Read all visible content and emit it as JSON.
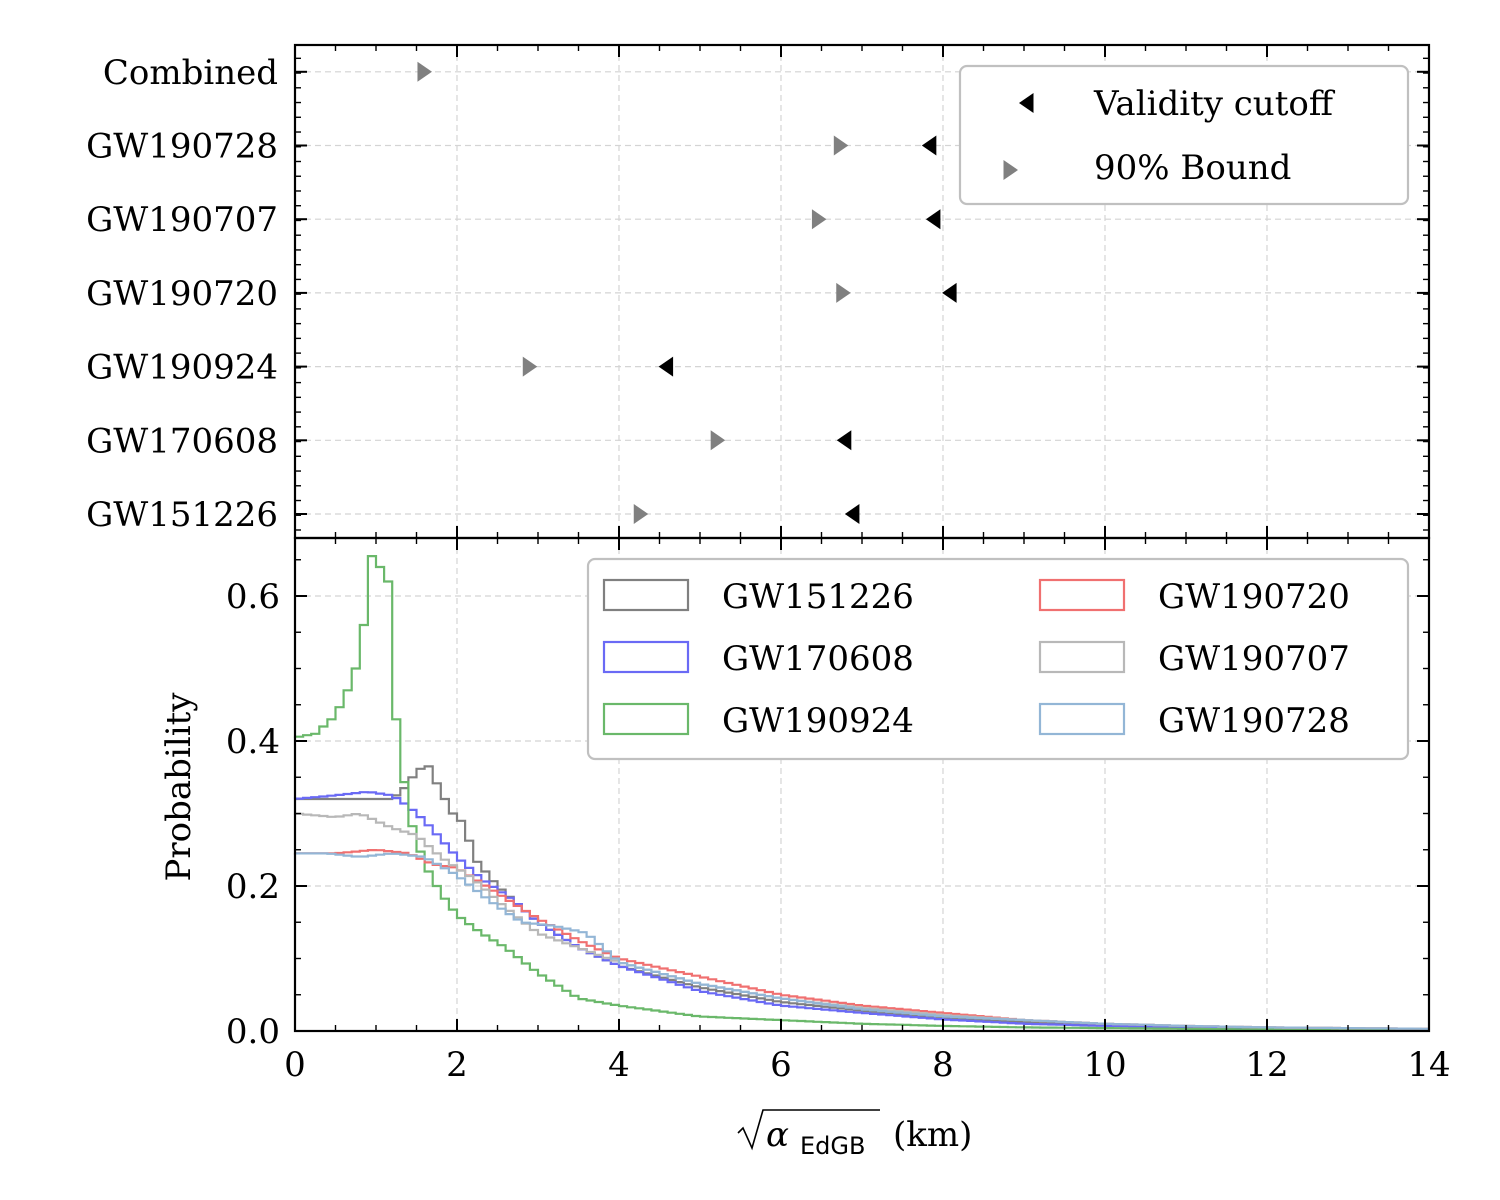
{
  "chart_data": [
    {
      "type": "scatter",
      "panel": "top",
      "categories": [
        "GW151226",
        "GW170608",
        "GW190924",
        "GW190720",
        "GW190707",
        "GW190728",
        "Combined"
      ],
      "series": [
        {
          "name": "Validity cutoff",
          "marker": "triangle-left",
          "color": "#000000",
          "x": [
            6.9,
            6.8,
            4.6,
            8.1,
            7.9,
            7.85,
            null
          ]
        },
        {
          "name": "90% Bound",
          "marker": "triangle-right",
          "color": "#808080",
          "x": [
            4.25,
            5.2,
            2.88,
            6.75,
            6.45,
            6.72,
            1.58
          ]
        }
      ],
      "xlim": [
        0,
        14
      ],
      "legend": "top-right"
    },
    {
      "type": "histogram",
      "panel": "bottom",
      "xlabel_main": "α",
      "xlabel_sub": "EdGB",
      "xlabel_unit": "(km)",
      "ylabel": "Probability",
      "xlim": [
        0,
        14
      ],
      "ylim": [
        0,
        0.68
      ],
      "xticks": [
        "0",
        "2",
        "4",
        "6",
        "8",
        "10",
        "12",
        "14"
      ],
      "yticks": [
        "0.0",
        "0.2",
        "0.4",
        "0.6"
      ],
      "legend": "top-right",
      "series": [
        {
          "name": "GW151226",
          "color": "#808080",
          "points": [
            [
              0,
              0.32
            ],
            [
              0.8,
              0.32
            ],
            [
              1.2,
              0.32
            ],
            [
              1.4,
              0.34
            ],
            [
              1.5,
              0.36
            ],
            [
              1.65,
              0.365
            ],
            [
              1.8,
              0.33
            ],
            [
              1.95,
              0.3
            ],
            [
              2.1,
              0.285
            ],
            [
              2.2,
              0.24
            ],
            [
              2.5,
              0.2
            ],
            [
              3,
              0.15
            ],
            [
              3.5,
              0.115
            ],
            [
              4,
              0.09
            ],
            [
              5,
              0.06
            ],
            [
              6,
              0.04
            ],
            [
              7,
              0.028
            ],
            [
              8,
              0.018
            ],
            [
              9,
              0.012
            ],
            [
              10,
              0.008
            ],
            [
              11,
              0.006
            ],
            [
              12,
              0.004
            ],
            [
              13,
              0.003
            ],
            [
              14,
              0.002
            ]
          ]
        },
        {
          "name": "GW170608",
          "color": "#6a6af5",
          "points": [
            [
              0,
              0.32
            ],
            [
              0.5,
              0.325
            ],
            [
              0.9,
              0.33
            ],
            [
              1.2,
              0.325
            ],
            [
              1.4,
              0.31
            ],
            [
              1.6,
              0.29
            ],
            [
              1.8,
              0.265
            ],
            [
              2,
              0.24
            ],
            [
              2.3,
              0.21
            ],
            [
              2.7,
              0.18
            ],
            [
              3,
              0.15
            ],
            [
              3.5,
              0.115
            ],
            [
              4,
              0.09
            ],
            [
              5,
              0.055
            ],
            [
              6,
              0.035
            ],
            [
              7,
              0.025
            ],
            [
              8,
              0.016
            ],
            [
              9,
              0.01
            ],
            [
              10,
              0.007
            ],
            [
              11,
              0.005
            ],
            [
              12,
              0.004
            ],
            [
              13,
              0.003
            ],
            [
              14,
              0.002
            ]
          ]
        },
        {
          "name": "GW190924",
          "color": "#6ab86a",
          "points": [
            [
              0,
              0.405
            ],
            [
              0.25,
              0.41
            ],
            [
              0.45,
              0.43
            ],
            [
              0.6,
              0.455
            ],
            [
              0.75,
              0.5
            ],
            [
              0.85,
              0.56
            ],
            [
              0.95,
              0.655
            ],
            [
              1.05,
              0.64
            ],
            [
              1.15,
              0.62
            ],
            [
              1.25,
              0.43
            ],
            [
              1.4,
              0.3
            ],
            [
              1.6,
              0.23
            ],
            [
              1.8,
              0.19
            ],
            [
              2,
              0.16
            ],
            [
              2.3,
              0.135
            ],
            [
              2.6,
              0.115
            ],
            [
              3,
              0.08
            ],
            [
              3.5,
              0.045
            ],
            [
              4,
              0.035
            ],
            [
              5,
              0.02
            ],
            [
              6,
              0.015
            ],
            [
              7,
              0.01
            ],
            [
              8,
              0.007
            ],
            [
              9,
              0.005
            ],
            [
              10,
              0.004
            ],
            [
              11,
              0.003
            ],
            [
              12,
              0.002
            ],
            [
              14,
              0.002
            ]
          ]
        },
        {
          "name": "GW190720",
          "color": "#f07070",
          "points": [
            [
              0,
              0.245
            ],
            [
              0.5,
              0.245
            ],
            [
              1,
              0.25
            ],
            [
              1.4,
              0.245
            ],
            [
              1.7,
              0.23
            ],
            [
              2,
              0.225
            ],
            [
              2.5,
              0.19
            ],
            [
              3,
              0.155
            ],
            [
              3.5,
              0.125
            ],
            [
              4,
              0.1
            ],
            [
              5,
              0.075
            ],
            [
              6,
              0.05
            ],
            [
              7,
              0.035
            ],
            [
              8,
              0.025
            ],
            [
              9,
              0.015
            ],
            [
              10,
              0.01
            ],
            [
              11,
              0.007
            ],
            [
              12,
              0.005
            ],
            [
              13,
              0.004
            ],
            [
              14,
              0.003
            ]
          ]
        },
        {
          "name": "GW190707",
          "color": "#b8b8b8",
          "points": [
            [
              0,
              0.3
            ],
            [
              0.5,
              0.295
            ],
            [
              0.8,
              0.3
            ],
            [
              1.2,
              0.28
            ],
            [
              1.5,
              0.27
            ],
            [
              1.8,
              0.24
            ],
            [
              2.2,
              0.21
            ],
            [
              2.6,
              0.17
            ],
            [
              3,
              0.135
            ],
            [
              3.5,
              0.115
            ],
            [
              4,
              0.095
            ],
            [
              5,
              0.065
            ],
            [
              6,
              0.045
            ],
            [
              7,
              0.032
            ],
            [
              8,
              0.022
            ],
            [
              9,
              0.015
            ],
            [
              10,
              0.01
            ],
            [
              11,
              0.007
            ],
            [
              12,
              0.005
            ],
            [
              13,
              0.004
            ],
            [
              14,
              0.003
            ]
          ]
        },
        {
          "name": "GW190728",
          "color": "#93b6d6",
          "points": [
            [
              0,
              0.245
            ],
            [
              0.4,
              0.245
            ],
            [
              0.8,
              0.24
            ],
            [
              1.2,
              0.245
            ],
            [
              1.6,
              0.24
            ],
            [
              2,
              0.215
            ],
            [
              2.4,
              0.18
            ],
            [
              2.8,
              0.15
            ],
            [
              3.2,
              0.145
            ],
            [
              3.6,
              0.135
            ],
            [
              4,
              0.095
            ],
            [
              4.5,
              0.08
            ],
            [
              5,
              0.065
            ],
            [
              6,
              0.045
            ],
            [
              7,
              0.03
            ],
            [
              8,
              0.02
            ],
            [
              9,
              0.015
            ],
            [
              10,
              0.01
            ],
            [
              11,
              0.007
            ],
            [
              12,
              0.005
            ],
            [
              13,
              0.004
            ],
            [
              14,
              0.003
            ]
          ]
        }
      ]
    }
  ]
}
